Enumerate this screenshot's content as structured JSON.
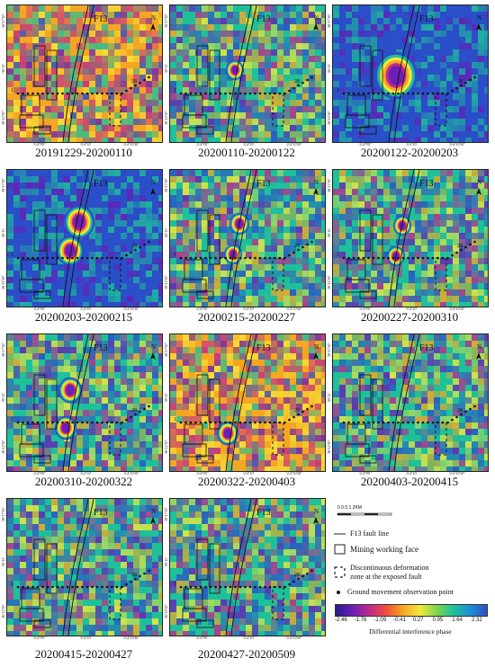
{
  "panels": [
    {
      "caption": "20191229-20200110",
      "theme": "warm",
      "fringes": []
    },
    {
      "caption": "20200110-20200122",
      "theme": "mixed",
      "fringes": [
        {
          "cx": 72,
          "cy": 72,
          "r": 10
        }
      ]
    },
    {
      "caption": "20200122-20200203",
      "theme": "blue",
      "fringes": [
        {
          "cx": 70,
          "cy": 78,
          "r": 24
        }
      ]
    },
    {
      "caption": "20200203-20200215",
      "theme": "blue",
      "fringes": [
        {
          "cx": 80,
          "cy": 58,
          "r": 17
        },
        {
          "cx": 70,
          "cy": 90,
          "r": 15
        }
      ]
    },
    {
      "caption": "20200215-20200227",
      "theme": "mixed",
      "fringes": [
        {
          "cx": 77,
          "cy": 60,
          "r": 11
        },
        {
          "cx": 70,
          "cy": 94,
          "r": 10
        }
      ]
    },
    {
      "caption": "20200227-20200310",
      "theme": "mixed",
      "fringes": [
        {
          "cx": 77,
          "cy": 62,
          "r": 10
        },
        {
          "cx": 70,
          "cy": 96,
          "r": 10
        }
      ]
    },
    {
      "caption": "20200310-20200322",
      "theme": "mixed",
      "fringes": [
        {
          "cx": 70,
          "cy": 62,
          "r": 13
        },
        {
          "cx": 65,
          "cy": 104,
          "r": 12
        }
      ]
    },
    {
      "caption": "20200322-20200403",
      "theme": "warm",
      "fringes": [
        {
          "cx": 64,
          "cy": 110,
          "r": 12
        }
      ]
    },
    {
      "caption": "20200403-20200415",
      "theme": "mixed",
      "fringes": []
    },
    {
      "caption": "20200415-20200427",
      "theme": "mixed",
      "fringes": []
    },
    {
      "caption": "20200427-20200509",
      "theme": "mixed",
      "fringes": []
    }
  ],
  "map_labels": {
    "fault": "F13",
    "north": "N",
    "point_start": "1",
    "point_end": "28",
    "lat1": "36°17'30\"",
    "lat2": "36°15'",
    "lat3": "36°12'30\"",
    "lon1": "114°9'0\"",
    "lon2": "114°10'",
    "lon3": "114°10'30\""
  },
  "legend": {
    "scale_text": "0  0.5  1        2KM",
    "fault_line": "F13 fault line",
    "mining_face": "Mining working face",
    "discontinuous_line1": "Discontinuous deformation",
    "discontinuous_line2": "zone at the exposed fault",
    "observation_point": "Ground movement observation point",
    "colorbar_ticks": [
      "-2.46",
      "-1.78",
      "-1.09",
      "-0.41",
      "0.27",
      "0.95",
      "1.64",
      "2.32"
    ],
    "colorbar_title": "Differential interference phase"
  },
  "colors": {
    "deep_blue": "#2b4fc8",
    "cyan": "#1fc09a",
    "yellow": "#f6e83a",
    "orange": "#f5a623",
    "magenta": "#c02a8c",
    "violet": "#6a1fb5"
  }
}
